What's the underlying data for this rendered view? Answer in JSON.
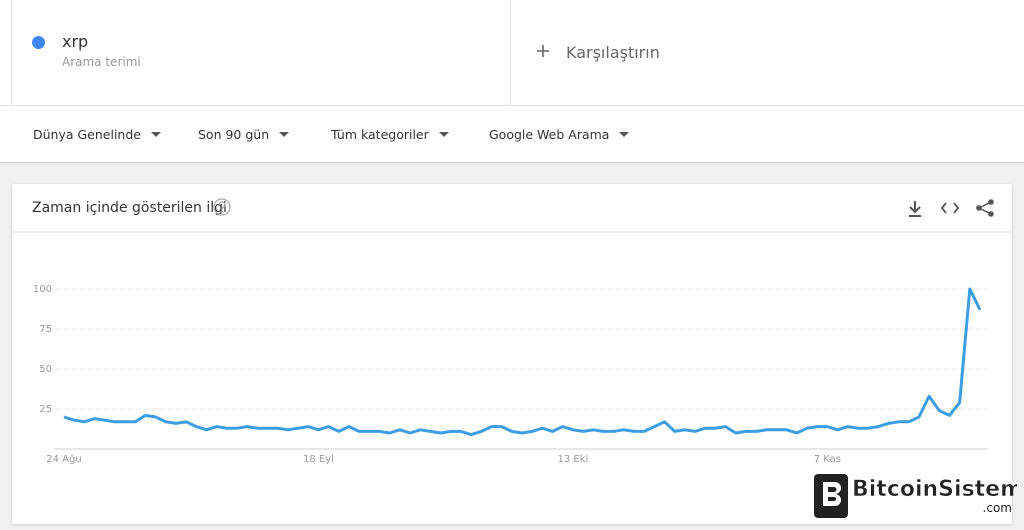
{
  "header": {
    "term_subtitle": "Arama terimi",
    "compare": "Karşılaştırın"
  },
  "filters": [
    "Dünya Genelinde",
    "Son 90 gün",
    "Tüm kategoriler",
    "Google Web Arama"
  ],
  "watermark": {
    "name": "BitcoinSistemi",
    "domain": ".com"
  },
  "chart_data": {
    "type": "line",
    "title": "Zaman içinde gösterilen ilgi",
    "categories": [
      "24 Ağu",
      null,
      null,
      null,
      null,
      null,
      null,
      null,
      null,
      null,
      null,
      null,
      null,
      null,
      null,
      null,
      null,
      null,
      null,
      null,
      null,
      null,
      null,
      null,
      null,
      "18 Eyl",
      null,
      null,
      null,
      null,
      null,
      null,
      null,
      null,
      null,
      null,
      null,
      null,
      null,
      null,
      null,
      null,
      null,
      null,
      null,
      null,
      null,
      null,
      null,
      null,
      "13 Eki",
      null,
      null,
      null,
      null,
      null,
      null,
      null,
      null,
      null,
      null,
      null,
      null,
      null,
      null,
      null,
      null,
      null,
      null,
      null,
      null,
      null,
      null,
      null,
      null,
      "7 Kas",
      null,
      null,
      null,
      null,
      null,
      null,
      null,
      null,
      null,
      null,
      null,
      null,
      null,
      null,
      null
    ],
    "series": [
      {
        "name": "xrp",
        "color": "#4285f4",
        "line_color": "#3d9de2",
        "values": [
          20,
          18,
          17,
          19,
          18,
          17,
          17,
          17,
          21,
          20,
          17,
          16,
          17,
          14,
          12,
          14,
          13,
          13,
          14,
          13,
          13,
          13,
          12,
          13,
          14,
          12,
          14,
          11,
          14,
          11,
          11,
          11,
          10,
          12,
          10,
          12,
          11,
          10,
          11,
          11,
          9,
          11,
          14,
          14,
          11,
          10,
          11,
          13,
          11,
          14,
          12,
          11,
          12,
          11,
          11,
          12,
          11,
          11,
          14,
          17,
          11,
          12,
          11,
          13,
          13,
          14,
          10,
          11,
          11,
          12,
          12,
          12,
          10,
          13,
          14,
          14,
          12,
          14,
          13,
          13,
          14,
          16,
          17,
          17,
          20,
          33,
          24,
          21,
          29,
          100,
          87
        ]
      }
    ],
    "ylim": [
      0,
      100
    ],
    "yticks": [
      25,
      50,
      75,
      100
    ],
    "grid": true
  }
}
